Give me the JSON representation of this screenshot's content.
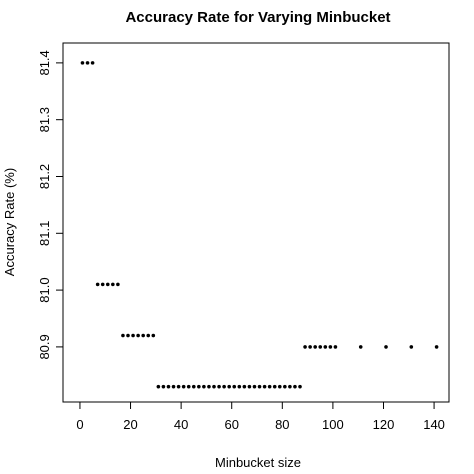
{
  "chart_data": {
    "type": "scatter",
    "title": "Accuracy Rate for Varying Minbucket",
    "x_label": "Minbucket size",
    "y_label": "Accuracy Rate (%)",
    "x": [
      1,
      3,
      5,
      7,
      9,
      11,
      13,
      15,
      17,
      19,
      21,
      23,
      25,
      27,
      29,
      31,
      33,
      35,
      37,
      39,
      41,
      43,
      45,
      47,
      49,
      51,
      53,
      55,
      57,
      59,
      61,
      63,
      65,
      67,
      69,
      71,
      73,
      75,
      77,
      79,
      81,
      83,
      85,
      87,
      89,
      91,
      93,
      95,
      97,
      99,
      101,
      111,
      121,
      131,
      141
    ],
    "values": [
      81.4,
      81.4,
      81.4,
      81.01,
      81.01,
      81.01,
      81.01,
      81.01,
      80.92,
      80.92,
      80.92,
      80.92,
      80.92,
      80.92,
      80.92,
      80.83,
      80.83,
      80.83,
      80.83,
      80.83,
      80.83,
      80.83,
      80.83,
      80.83,
      80.83,
      80.83,
      80.83,
      80.83,
      80.83,
      80.83,
      80.83,
      80.83,
      80.83,
      80.83,
      80.83,
      80.83,
      80.83,
      80.83,
      80.83,
      80.83,
      80.83,
      80.83,
      80.83,
      80.83,
      80.9,
      80.9,
      80.9,
      80.9,
      80.9,
      80.9,
      80.9,
      80.9,
      80.9,
      80.9,
      80.9
    ],
    "color": "#000000",
    "xlim": [
      -6.7,
      145.9
    ],
    "ylim": [
      80.803,
      81.435
    ],
    "xticks": [
      0,
      20,
      40,
      60,
      80,
      100,
      120,
      140
    ],
    "yticks": [
      80.9,
      {
        "value": 81.0,
        "label": "81.0"
      },
      81.1,
      81.2,
      81.3,
      81.4
    ]
  }
}
